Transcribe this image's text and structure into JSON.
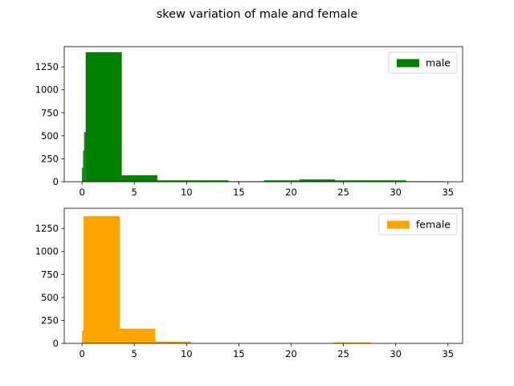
{
  "figure": {
    "suptitle": "skew variation of male and female"
  },
  "chart_data": [
    {
      "type": "bar",
      "legend": "male",
      "legend_placement": "top-right",
      "color": "#008000",
      "grid": false,
      "xlim": [
        -1.7,
        36.4
      ],
      "ylim": [
        0,
        1470
      ],
      "xticks": [
        0,
        5,
        10,
        15,
        20,
        25,
        30,
        35
      ],
      "yticks": [
        0,
        250,
        500,
        750,
        1000,
        1250
      ],
      "bins": [
        {
          "x0": 0.0,
          "x1": 0.1,
          "value": 150
        },
        {
          "x0": 0.1,
          "x1": 0.2,
          "value": 340
        },
        {
          "x0": 0.2,
          "x1": 0.35,
          "value": 540
        },
        {
          "x0": 0.35,
          "x1": 3.8,
          "value": 1410
        },
        {
          "x0": 3.8,
          "x1": 7.2,
          "value": 70
        },
        {
          "x0": 7.2,
          "x1": 10.6,
          "value": 15
        },
        {
          "x0": 10.6,
          "x1": 14.0,
          "value": 15
        },
        {
          "x0": 14.0,
          "x1": 17.4,
          "value": 5
        },
        {
          "x0": 17.4,
          "x1": 20.8,
          "value": 15
        },
        {
          "x0": 20.8,
          "x1": 24.2,
          "value": 25
        },
        {
          "x0": 24.2,
          "x1": 27.6,
          "value": 15
        },
        {
          "x0": 27.6,
          "x1": 31.0,
          "value": 15
        },
        {
          "x0": 31.0,
          "x1": 34.6,
          "value": 5
        }
      ]
    },
    {
      "type": "bar",
      "legend": "female",
      "legend_placement": "top-right",
      "color": "#FFA500",
      "grid": false,
      "xlim": [
        -1.7,
        36.4
      ],
      "ylim": [
        0,
        1470
      ],
      "xticks": [
        0,
        5,
        10,
        15,
        20,
        25,
        30,
        35
      ],
      "yticks": [
        0,
        250,
        500,
        750,
        1000,
        1250
      ],
      "bins": [
        {
          "x0": 0.0,
          "x1": 0.15,
          "value": 140
        },
        {
          "x0": 0.15,
          "x1": 3.6,
          "value": 1385
        },
        {
          "x0": 3.6,
          "x1": 7.0,
          "value": 160
        },
        {
          "x0": 7.0,
          "x1": 10.4,
          "value": 20
        },
        {
          "x0": 10.4,
          "x1": 13.8,
          "value": 0
        },
        {
          "x0": 13.8,
          "x1": 17.2,
          "value": 0
        },
        {
          "x0": 17.2,
          "x1": 20.6,
          "value": 0
        },
        {
          "x0": 20.6,
          "x1": 24.0,
          "value": 0
        },
        {
          "x0": 24.0,
          "x1": 27.6,
          "value": 10
        },
        {
          "x0": 27.6,
          "x1": 31.0,
          "value": 0
        },
        {
          "x0": 31.0,
          "x1": 34.6,
          "value": 0
        }
      ]
    }
  ]
}
